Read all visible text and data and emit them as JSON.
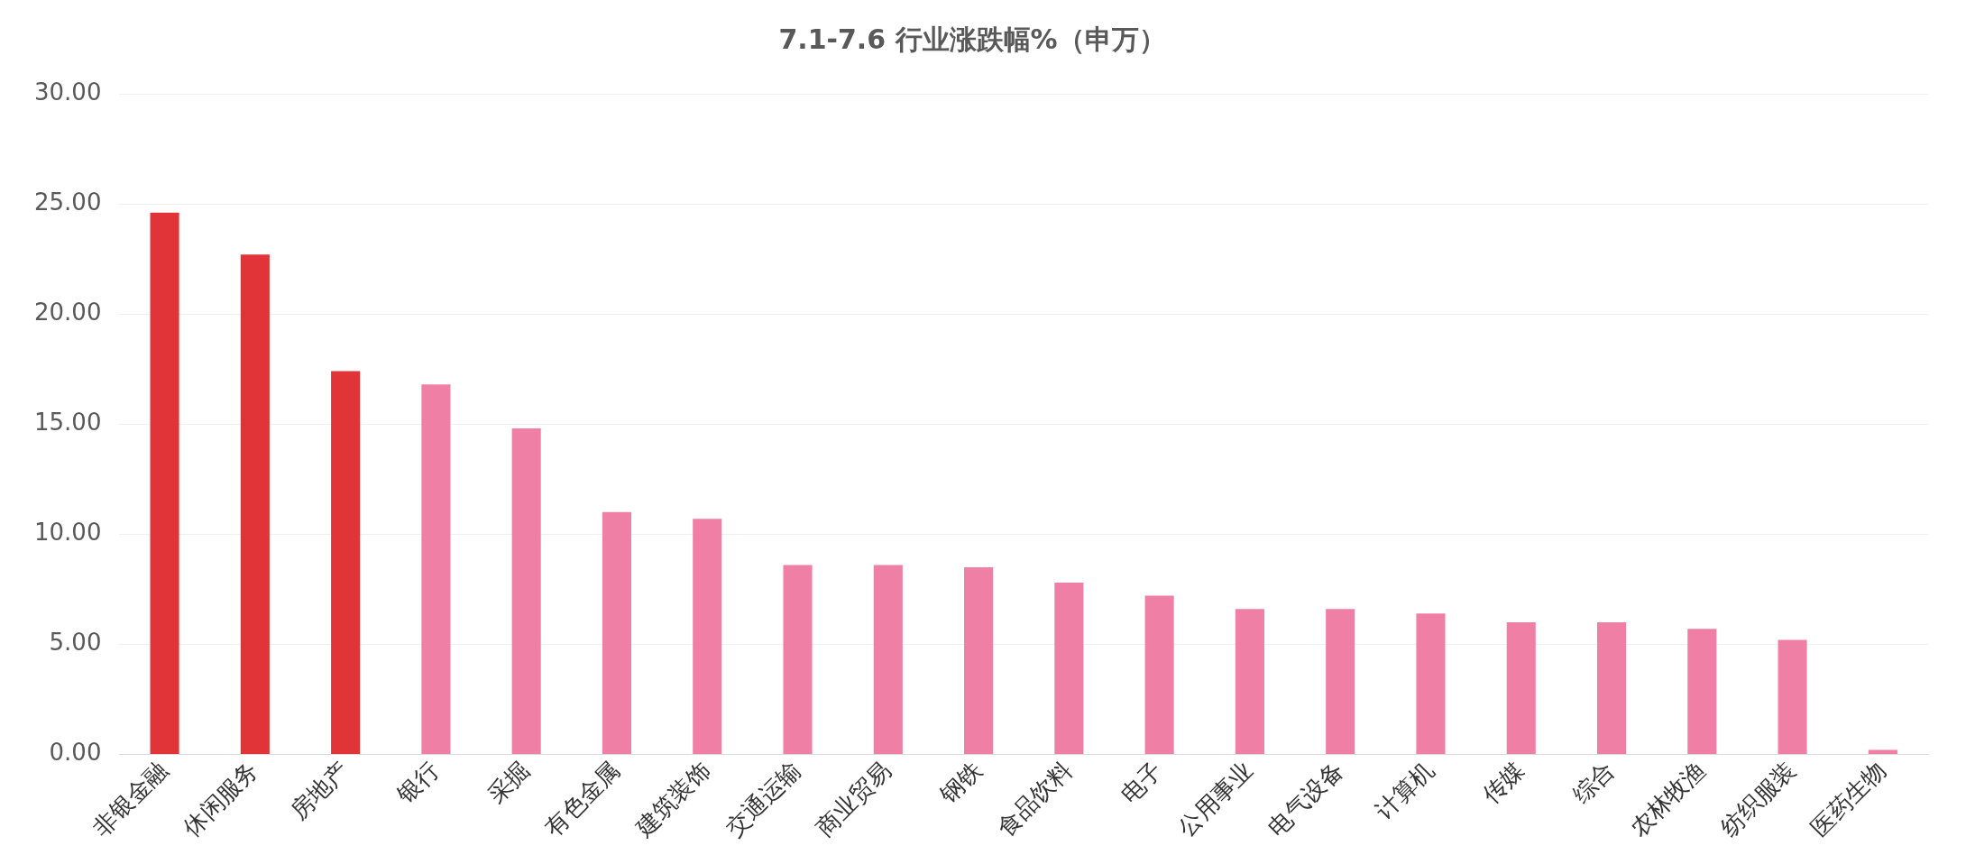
{
  "chart_data": {
    "type": "bar",
    "title": "7.1-7.6 行业涨跌幅%（申万）",
    "categories": [
      "非银金融",
      "休闲服务",
      "房地产",
      "银行",
      "采掘",
      "有色金属",
      "建筑装饰",
      "交通运输",
      "商业贸易",
      "钢铁",
      "食品饮料",
      "电子",
      "公用事业",
      "电气设备",
      "计算机",
      "传媒",
      "综合",
      "农林牧渔",
      "纺织服装",
      "医药生物"
    ],
    "values": [
      24.6,
      22.7,
      17.4,
      16.8,
      14.8,
      11.0,
      10.7,
      8.6,
      8.6,
      8.5,
      7.8,
      7.2,
      6.6,
      6.6,
      6.4,
      6.0,
      6.0,
      5.7,
      5.2,
      0.2
    ],
    "colors": [
      "#e03438",
      "#e03438",
      "#e03438",
      "#f07fa5",
      "#f07fa5",
      "#f07fa5",
      "#f07fa5",
      "#f07fa5",
      "#f07fa5",
      "#f07fa5",
      "#f07fa5",
      "#f07fa5",
      "#f07fa5",
      "#f07fa5",
      "#f07fa5",
      "#f07fa5",
      "#f07fa5",
      "#f07fa5",
      "#f07fa5",
      "#f07fa5"
    ],
    "ylim": [
      0,
      30
    ],
    "yticks": [
      {
        "value": 0,
        "label": "0.00"
      },
      {
        "value": 5,
        "label": "5.00"
      },
      {
        "value": 10,
        "label": "10.00"
      },
      {
        "value": 15,
        "label": "15.00"
      },
      {
        "value": 20,
        "label": "20.00"
      },
      {
        "value": 25,
        "label": "25.00"
      },
      {
        "value": 30,
        "label": "30.00"
      }
    ],
    "grid": "y",
    "legend": false
  }
}
